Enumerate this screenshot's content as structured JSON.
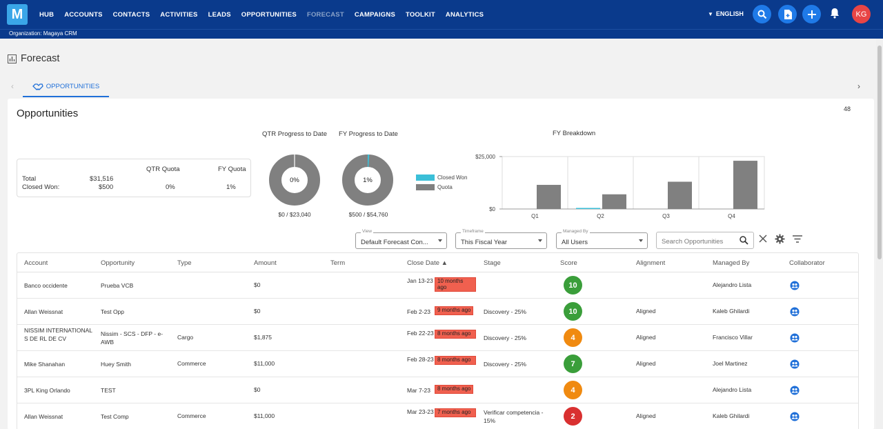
{
  "nav": {
    "logo": "M",
    "links": [
      "HUB",
      "ACCOUNTS",
      "CONTACTS",
      "ACTIVITIES",
      "LEADS",
      "OPPORTUNITIES",
      "FORECAST",
      "CAMPAIGNS",
      "TOOLKIT",
      "ANALYTICS"
    ],
    "active": "FORECAST",
    "language": "ENGLISH",
    "avatar_initials": "KG"
  },
  "org": "Organization: Magaya CRM",
  "page_title": "Forecast",
  "tab": "OPPORTUNITIES",
  "card": {
    "title": "Opportunities",
    "count": "48"
  },
  "summary": {
    "col_qtr": "QTR Quota",
    "col_fy": "FY Quota",
    "total_label": "Total",
    "closed_label": "Closed Won:",
    "total_value": "$31,516",
    "closed_value": "$500",
    "qtr_pct": "0%",
    "fy_pct": "1%"
  },
  "qtr_progress": {
    "title": "QTR Progress to Date",
    "label": "0%",
    "percent": 0,
    "sub": "$0 / $23,040"
  },
  "fy_progress": {
    "title": "FY Progress to Date",
    "label": "1%",
    "percent": 1,
    "sub": "$500 / $54,760"
  },
  "legend": {
    "closed_won": "Closed Won",
    "quota": "Quota"
  },
  "colors": {
    "closed_won": "#3bbfd8",
    "quota": "#808080",
    "nav_bg": "#0a3a8c",
    "accent": "#1f6fd8"
  },
  "chart_data": {
    "type": "bar",
    "title": "FY Breakdown",
    "categories": [
      "Q1",
      "Q2",
      "Q3",
      "Q4"
    ],
    "series": [
      {
        "name": "Closed Won",
        "values": [
          0,
          500,
          0,
          0
        ]
      },
      {
        "name": "Quota",
        "values": [
          11500,
          7000,
          13000,
          23000
        ]
      }
    ],
    "y_ticks": [
      "$25,000",
      "$0"
    ],
    "ylim": [
      0,
      25000
    ],
    "grid": true
  },
  "filters": {
    "view_label": "View",
    "view_value": "Default Forecast Con...",
    "timeframe_label": "Timeframe",
    "timeframe_value": "This Fiscal Year",
    "managed_label": "Managed By",
    "managed_value": "All Users",
    "search_placeholder": "Search Opportunities"
  },
  "table": {
    "headers": [
      "Account",
      "Opportunity",
      "Type",
      "Amount",
      "Term",
      "Close Date ▲",
      "Stage",
      "Score",
      "Alignment",
      "Managed By",
      "Collaborator"
    ],
    "rows": [
      {
        "account": "Banco occidente",
        "opportunity": "Prueba VCB",
        "type": "",
        "amount": "$0",
        "date": "Jan 13-23",
        "ago": "10 months ago",
        "stage": "",
        "score": "10",
        "score_color": "#3a9e3a",
        "alignment": "",
        "manager": "Alejandro Lista"
      },
      {
        "account": "Allan Weissnat",
        "opportunity": "Test Opp",
        "type": "",
        "amount": "$0",
        "date": "Feb 2-23",
        "ago": "9 months ago",
        "stage": "Discovery - 25%",
        "score": "10",
        "score_color": "#3a9e3a",
        "alignment": "Aligned",
        "manager": "Kaleb Ghilardi"
      },
      {
        "account": "NISSIM INTERNATIONAL S DE RL DE CV",
        "opportunity": "Nissim - SCS - DFP - e-AWB",
        "type": "Cargo",
        "amount": "$1,875",
        "date": "Feb 22-23",
        "ago": "8 months ago",
        "stage": "Discovery - 25%",
        "score": "4",
        "score_color": "#f08a10",
        "alignment": "Aligned",
        "manager": "Francisco Villar"
      },
      {
        "account": "Mike Shanahan",
        "opportunity": "Huey Smith",
        "type": "Commerce",
        "amount": "$11,000",
        "date": "Feb 28-23",
        "ago": "8 months ago",
        "stage": "Discovery - 25%",
        "score": "7",
        "score_color": "#3a9e3a",
        "alignment": "Aligned",
        "manager": "Joel Martinez"
      },
      {
        "account": "3PL King Orlando",
        "opportunity": "TEST",
        "type": "",
        "amount": "$0",
        "date": "Mar 7-23",
        "ago": "8 months ago",
        "stage": "",
        "score": "4",
        "score_color": "#f08a10",
        "alignment": "",
        "manager": "Alejandro Lista"
      },
      {
        "account": "Allan Weissnat",
        "opportunity": "Test Comp",
        "type": "Commerce",
        "amount": "$11,000",
        "date": "Mar 23-23",
        "ago": "7 months ago",
        "stage": "Verificar competencia - 15%",
        "score": "2",
        "score_color": "#d93030",
        "alignment": "Aligned",
        "manager": "Kaleb Ghilardi"
      }
    ]
  }
}
